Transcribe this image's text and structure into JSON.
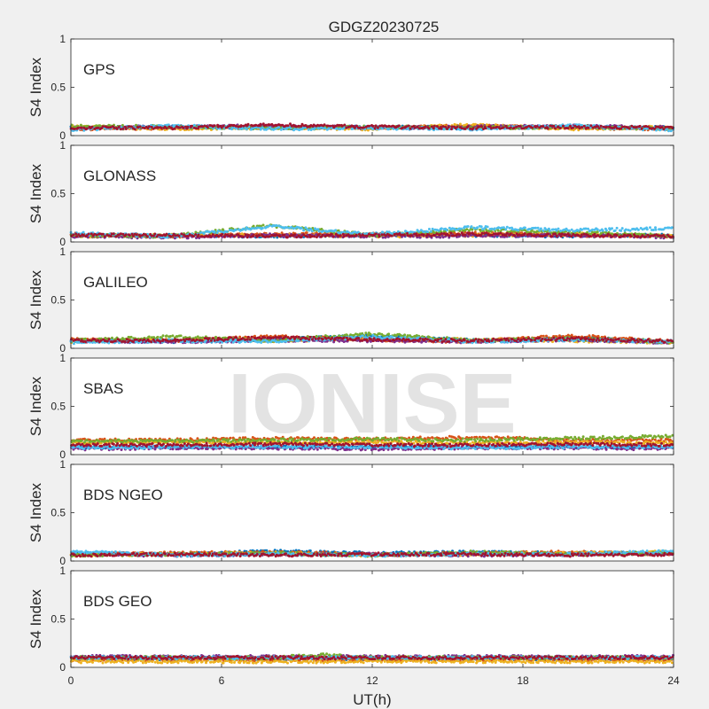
{
  "figure": {
    "title": "GDGZ20230725",
    "xlabel": "UT(h)",
    "watermark": "IONISE",
    "background": "#f0f0f0",
    "axes_color": "#262626",
    "watermark_color": "#d9d9d9"
  },
  "chart_data": {
    "type": "scatter",
    "title": "GDGZ20230725",
    "xlabel": "UT(h)",
    "xlim": [
      0,
      24
    ],
    "xticks": [
      "0",
      "6",
      "12",
      "18",
      "24"
    ],
    "ylabel": "S4 Index",
    "ylim": [
      0,
      1
    ],
    "yticks": [
      "0",
      "0.5",
      "1"
    ],
    "grid": false,
    "series_colors": [
      "#0072bd",
      "#d95319",
      "#edb120",
      "#7e2f8e",
      "#77ac30",
      "#4dbeee",
      "#a2142f"
    ],
    "panels": [
      {
        "label": "GPS",
        "series": [
          {
            "color": "#0072bd",
            "x": [
              0,
              4,
              8,
              12,
              16,
              20,
              24
            ],
            "y": [
              0.08,
              0.09,
              0.08,
              0.09,
              0.08,
              0.09,
              0.08
            ]
          },
          {
            "color": "#d95319",
            "x": [
              0,
              4,
              8,
              12,
              16,
              20,
              24
            ],
            "y": [
              0.07,
              0.08,
              0.09,
              0.08,
              0.1,
              0.08,
              0.07
            ]
          },
          {
            "color": "#edb120",
            "x": [
              0,
              4,
              8,
              12,
              16,
              20,
              24
            ],
            "y": [
              0.09,
              0.07,
              0.08,
              0.07,
              0.11,
              0.07,
              0.09
            ]
          },
          {
            "color": "#7e2f8e",
            "x": [
              0,
              4,
              8,
              12,
              16,
              20,
              24
            ],
            "y": [
              0.08,
              0.09,
              0.1,
              0.08,
              0.09,
              0.1,
              0.08
            ]
          },
          {
            "color": "#77ac30",
            "x": [
              0,
              4,
              8,
              12,
              16,
              20,
              24
            ],
            "y": [
              0.1,
              0.09,
              0.08,
              0.09,
              0.08,
              0.09,
              0.07
            ]
          },
          {
            "color": "#4dbeee",
            "x": [
              0,
              4,
              8,
              12,
              16,
              20,
              24
            ],
            "y": [
              0.06,
              0.1,
              0.07,
              0.08,
              0.07,
              0.1,
              0.06
            ]
          },
          {
            "color": "#a2142f",
            "x": [
              0,
              4,
              8,
              12,
              16,
              20,
              24
            ],
            "y": [
              0.08,
              0.08,
              0.11,
              0.09,
              0.08,
              0.09,
              0.08
            ]
          }
        ]
      },
      {
        "label": "GLONASS",
        "series": [
          {
            "color": "#0072bd",
            "x": [
              0,
              4,
              8,
              12,
              16,
              20,
              24
            ],
            "y": [
              0.07,
              0.07,
              0.06,
              0.07,
              0.07,
              0.06,
              0.07
            ]
          },
          {
            "color": "#d95319",
            "x": [
              0,
              4,
              8,
              12,
              16,
              20,
              24
            ],
            "y": [
              0.08,
              0.06,
              0.08,
              0.08,
              0.09,
              0.07,
              0.06
            ]
          },
          {
            "color": "#edb120",
            "x": [
              0,
              4,
              8,
              12,
              16,
              20,
              24
            ],
            "y": [
              0.06,
              0.07,
              0.07,
              0.06,
              0.07,
              0.08,
              0.06
            ]
          },
          {
            "color": "#7e2f8e",
            "x": [
              0,
              4,
              8,
              12,
              16,
              20,
              24
            ],
            "y": [
              0.06,
              0.05,
              0.07,
              0.06,
              0.06,
              0.07,
              0.05
            ]
          },
          {
            "color": "#77ac30",
            "x": [
              0,
              4,
              8,
              12,
              16,
              20,
              24
            ],
            "y": [
              0.07,
              0.06,
              0.17,
              0.07,
              0.13,
              0.1,
              0.06
            ]
          },
          {
            "color": "#4dbeee",
            "x": [
              0,
              4,
              8,
              12,
              16,
              20,
              24
            ],
            "y": [
              0.09,
              0.06,
              0.16,
              0.08,
              0.15,
              0.12,
              0.14
            ]
          },
          {
            "color": "#a2142f",
            "x": [
              0,
              4,
              8,
              12,
              16,
              20,
              24
            ],
            "y": [
              0.07,
              0.07,
              0.06,
              0.07,
              0.08,
              0.07,
              0.06
            ]
          }
        ]
      },
      {
        "label": "GALILEO",
        "series": [
          {
            "color": "#0072bd",
            "x": [
              0,
              4,
              8,
              12,
              16,
              20,
              24
            ],
            "y": [
              0.08,
              0.07,
              0.09,
              0.13,
              0.08,
              0.11,
              0.06
            ]
          },
          {
            "color": "#d95319",
            "x": [
              0,
              4,
              8,
              12,
              16,
              20,
              24
            ],
            "y": [
              0.09,
              0.08,
              0.12,
              0.09,
              0.07,
              0.13,
              0.07
            ]
          },
          {
            "color": "#edb120",
            "x": [
              0,
              4,
              8,
              12,
              16,
              20,
              24
            ],
            "y": [
              0.07,
              0.09,
              0.08,
              0.1,
              0.09,
              0.08,
              0.06
            ]
          },
          {
            "color": "#7e2f8e",
            "x": [
              0,
              4,
              8,
              12,
              16,
              20,
              24
            ],
            "y": [
              0.07,
              0.07,
              0.08,
              0.08,
              0.07,
              0.09,
              0.06
            ]
          },
          {
            "color": "#77ac30",
            "x": [
              0,
              4,
              8,
              12,
              16,
              20,
              24
            ],
            "y": [
              0.08,
              0.12,
              0.08,
              0.15,
              0.08,
              0.1,
              0.07
            ]
          },
          {
            "color": "#4dbeee",
            "x": [
              0,
              4,
              8,
              12,
              16,
              20,
              24
            ],
            "y": [
              0.06,
              0.08,
              0.07,
              0.12,
              0.07,
              0.09,
              0.07
            ]
          },
          {
            "color": "#a2142f",
            "x": [
              0,
              4,
              8,
              12,
              16,
              20,
              24
            ],
            "y": [
              0.08,
              0.08,
              0.11,
              0.09,
              0.08,
              0.1,
              0.07
            ]
          }
        ]
      },
      {
        "label": "SBAS",
        "series": [
          {
            "color": "#0072bd",
            "x": [
              0,
              4,
              8,
              12,
              16,
              20,
              24
            ],
            "y": [
              0.08,
              0.08,
              0.08,
              0.08,
              0.08,
              0.08,
              0.08
            ]
          },
          {
            "color": "#d95319",
            "x": [
              0,
              4,
              8,
              12,
              16,
              20,
              24
            ],
            "y": [
              0.15,
              0.15,
              0.17,
              0.16,
              0.18,
              0.15,
              0.15
            ]
          },
          {
            "color": "#edb120",
            "x": [
              0,
              4,
              8,
              12,
              16,
              20,
              24
            ],
            "y": [
              0.12,
              0.13,
              0.12,
              0.13,
              0.12,
              0.13,
              0.12
            ]
          },
          {
            "color": "#7e2f8e",
            "x": [
              0,
              4,
              8,
              12,
              16,
              20,
              24
            ],
            "y": [
              0.06,
              0.07,
              0.07,
              0.06,
              0.07,
              0.07,
              0.06
            ]
          },
          {
            "color": "#77ac30",
            "x": [
              0,
              4,
              8,
              12,
              16,
              20,
              24
            ],
            "y": [
              0.14,
              0.14,
              0.15,
              0.16,
              0.15,
              0.17,
              0.19
            ]
          },
          {
            "color": "#4dbeee",
            "x": [
              0,
              4,
              8,
              12,
              16,
              20,
              24
            ],
            "y": [
              0.07,
              0.08,
              0.08,
              0.08,
              0.07,
              0.08,
              0.08
            ]
          },
          {
            "color": "#a2142f",
            "x": [
              0,
              4,
              8,
              12,
              16,
              20,
              24
            ],
            "y": [
              0.1,
              0.1,
              0.11,
              0.1,
              0.1,
              0.11,
              0.1
            ]
          }
        ]
      },
      {
        "label": "BDS NGEO",
        "series": [
          {
            "color": "#0072bd",
            "x": [
              0,
              4,
              8,
              12,
              16,
              20,
              24
            ],
            "y": [
              0.08,
              0.07,
              0.1,
              0.08,
              0.09,
              0.08,
              0.08
            ]
          },
          {
            "color": "#d95319",
            "x": [
              0,
              4,
              8,
              12,
              16,
              20,
              24
            ],
            "y": [
              0.07,
              0.08,
              0.09,
              0.07,
              0.08,
              0.09,
              0.07
            ]
          },
          {
            "color": "#edb120",
            "x": [
              0,
              4,
              8,
              12,
              16,
              20,
              24
            ],
            "y": [
              0.06,
              0.07,
              0.08,
              0.06,
              0.07,
              0.08,
              0.09
            ]
          },
          {
            "color": "#7e2f8e",
            "x": [
              0,
              4,
              8,
              12,
              16,
              20,
              24
            ],
            "y": [
              0.07,
              0.06,
              0.07,
              0.07,
              0.06,
              0.07,
              0.08
            ]
          },
          {
            "color": "#77ac30",
            "x": [
              0,
              4,
              8,
              12,
              16,
              20,
              24
            ],
            "y": [
              0.06,
              0.07,
              0.08,
              0.06,
              0.09,
              0.07,
              0.08
            ]
          },
          {
            "color": "#4dbeee",
            "x": [
              0,
              4,
              8,
              12,
              16,
              20,
              24
            ],
            "y": [
              0.1,
              0.06,
              0.07,
              0.06,
              0.07,
              0.07,
              0.1
            ]
          },
          {
            "color": "#a2142f",
            "x": [
              0,
              4,
              8,
              12,
              16,
              20,
              24
            ],
            "y": [
              0.06,
              0.07,
              0.06,
              0.07,
              0.07,
              0.06,
              0.07
            ]
          }
        ]
      },
      {
        "label": "BDS GEO",
        "series": [
          {
            "color": "#0072bd",
            "x": [
              0,
              4,
              8,
              12,
              16,
              20,
              24
            ],
            "y": [
              0.09,
              0.09,
              0.09,
              0.09,
              0.09,
              0.09,
              0.09
            ]
          },
          {
            "color": "#d95319",
            "x": [
              0,
              4,
              8,
              12,
              16,
              20,
              24
            ],
            "y": [
              0.08,
              0.08,
              0.08,
              0.08,
              0.08,
              0.08,
              0.08
            ]
          },
          {
            "color": "#edb120",
            "x": [
              0,
              4,
              8,
              12,
              16,
              20,
              24
            ],
            "y": [
              0.06,
              0.06,
              0.06,
              0.06,
              0.06,
              0.06,
              0.06
            ]
          },
          {
            "color": "#7e2f8e",
            "x": [
              0,
              4,
              8,
              12,
              16,
              20,
              24
            ],
            "y": [
              0.11,
              0.11,
              0.11,
              0.11,
              0.11,
              0.11,
              0.11
            ]
          },
          {
            "color": "#77ac30",
            "x": [
              0,
              4,
              8,
              10,
              12,
              16,
              20,
              24
            ],
            "y": [
              0.1,
              0.1,
              0.1,
              0.13,
              0.1,
              0.1,
              0.1,
              0.1
            ]
          },
          {
            "color": "#4dbeee",
            "x": [
              0,
              4,
              8,
              12,
              16,
              20,
              24
            ],
            "y": [
              0.1,
              0.1,
              0.1,
              0.1,
              0.1,
              0.1,
              0.1
            ]
          },
          {
            "color": "#a2142f",
            "x": [
              0,
              4,
              8,
              12,
              16,
              20,
              24
            ],
            "y": [
              0.1,
              0.1,
              0.1,
              0.1,
              0.1,
              0.1,
              0.1
            ]
          }
        ]
      }
    ]
  }
}
